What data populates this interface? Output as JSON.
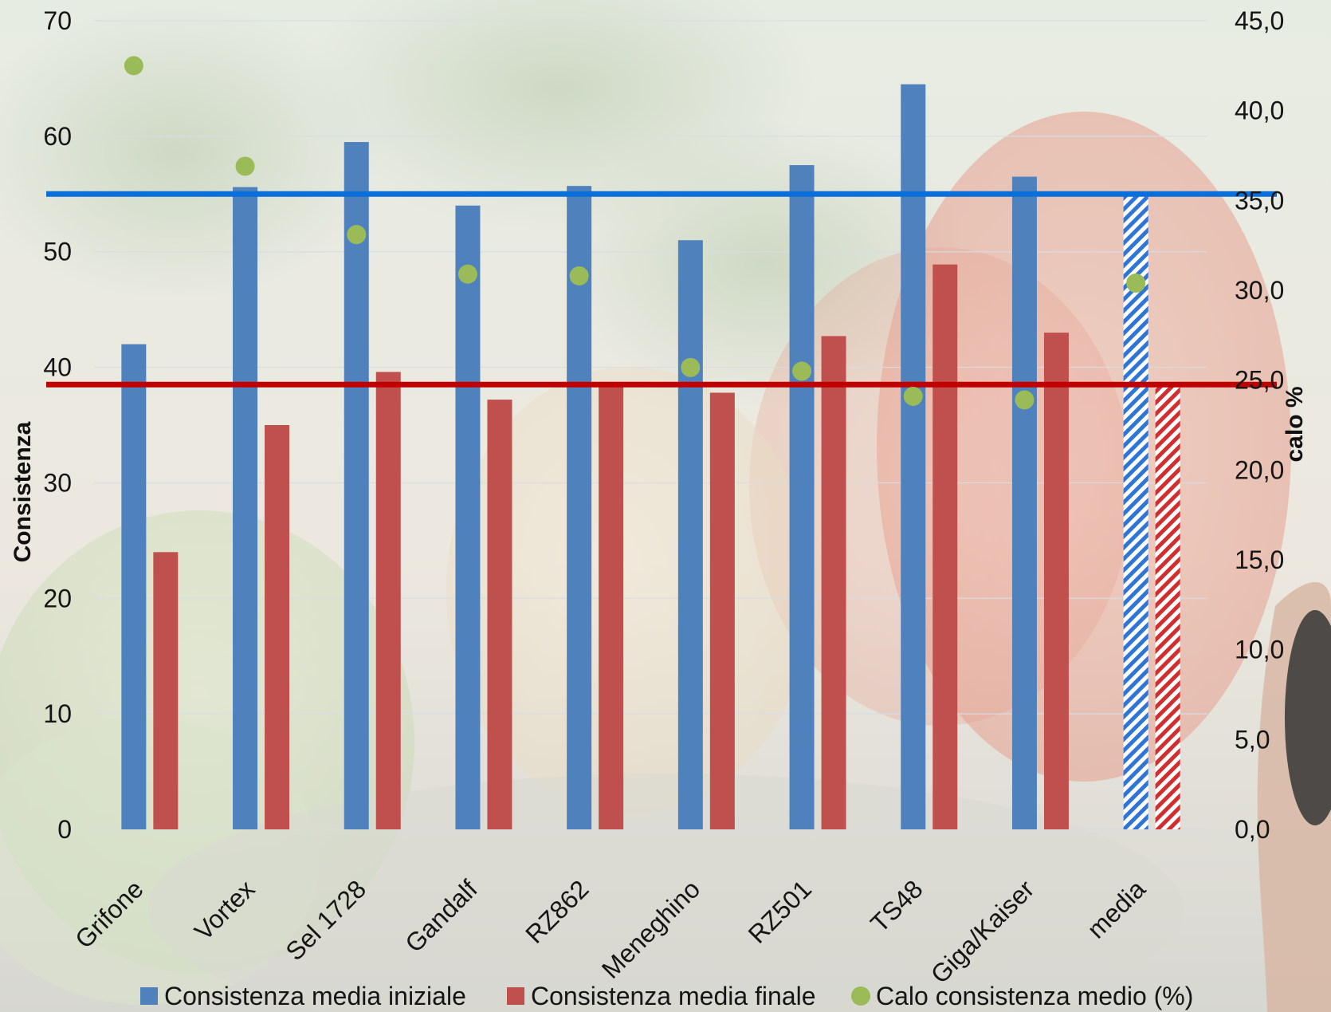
{
  "chart_data": {
    "type": "bar",
    "title": "",
    "categories": [
      "Grifone",
      "Vortex",
      "Sel 1728",
      "Gandalf",
      "RZ862",
      "Meneghino",
      "RZ501",
      "TS48",
      "Giga/Kaiser",
      "media"
    ],
    "series": [
      {
        "name": "Consistenza media iniziale",
        "type": "bar",
        "axis": "left",
        "color": "#4f81bd",
        "values": [
          42.0,
          55.6,
          59.5,
          54.0,
          55.7,
          51.0,
          57.5,
          64.5,
          56.5,
          55.0
        ]
      },
      {
        "name": "Consistenza media finale",
        "type": "bar",
        "axis": "left",
        "color": "#c0504d",
        "values": [
          24.0,
          35.0,
          39.6,
          37.2,
          38.5,
          37.8,
          42.7,
          48.9,
          43.0,
          38.5
        ]
      },
      {
        "name": "Calo consistenza medio (%)",
        "type": "scatter",
        "axis": "right",
        "color": "#9bbb59",
        "values": [
          42.5,
          36.9,
          33.1,
          30.9,
          30.8,
          25.7,
          25.5,
          24.1,
          23.9,
          30.4
        ]
      }
    ],
    "patterned_last_category": true,
    "reference_lines": [
      {
        "axis": "left",
        "value": 55.0,
        "color": "#0a6fd8"
      },
      {
        "axis": "left",
        "value": 38.5,
        "color": "#c00000"
      }
    ],
    "ylabel": "Consistenza",
    "y2label": "calo %",
    "ylim": [
      0,
      70
    ],
    "y2lim": [
      0,
      45
    ],
    "yticks": [
      "0",
      "10",
      "20",
      "30",
      "40",
      "50",
      "60",
      "70"
    ],
    "y2ticks": [
      "0,0",
      "5,0",
      "10,0",
      "15,0",
      "20,0",
      "25,0",
      "30,0",
      "35,0",
      "40,0",
      "45,0"
    ],
    "grid": true,
    "legend_position": "bottom"
  }
}
